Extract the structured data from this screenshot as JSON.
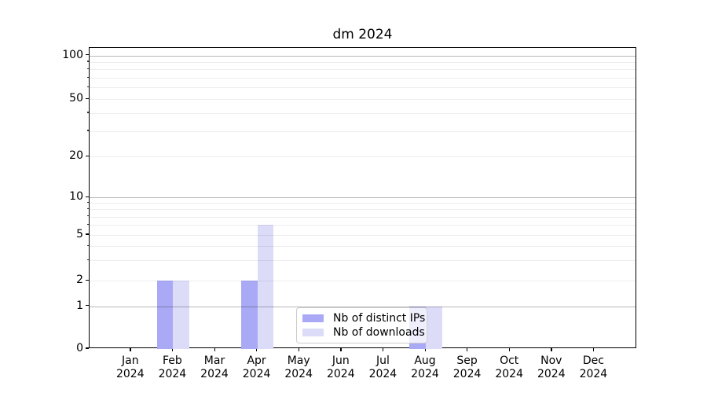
{
  "figure": {
    "title": "dm 2024"
  },
  "chart_data": {
    "type": "bar",
    "title": "dm 2024",
    "categories": [
      "Jan 2024",
      "Feb 2024",
      "Mar 2024",
      "Apr 2024",
      "May 2024",
      "Jun 2024",
      "Jul 2024",
      "Aug 2024",
      "Sep 2024",
      "Oct 2024",
      "Nov 2024",
      "Dec 2024"
    ],
    "x_tick_month": [
      "Jan",
      "Feb",
      "Mar",
      "Apr",
      "May",
      "Jun",
      "Jul",
      "Aug",
      "Sep",
      "Oct",
      "Nov",
      "Dec"
    ],
    "x_tick_year": "2024",
    "series": [
      {
        "name": "Nb of distinct IPs",
        "color": "#a9a9f6",
        "values": [
          0,
          2,
          0,
          2,
          0,
          0,
          0,
          1,
          0,
          0,
          0,
          0
        ]
      },
      {
        "name": "Nb of downloads",
        "color": "#dcdcf9",
        "values": [
          0,
          2,
          0,
          6,
          0,
          0,
          0,
          1,
          0,
          0,
          0,
          0
        ]
      }
    ],
    "y_axis": {
      "scale": "symlog",
      "tick_values": [
        0,
        1,
        2,
        5,
        10,
        20,
        50,
        100
      ],
      "tick_labels": [
        "0",
        "1",
        "2",
        "5",
        "10",
        "20",
        "50",
        "100"
      ],
      "range_top": 110
    },
    "grid": {
      "horizontal_major": [
        1,
        10,
        100
      ],
      "horizontal_minor": [
        2,
        3,
        4,
        5,
        6,
        7,
        8,
        9,
        20,
        30,
        40,
        50,
        60,
        70,
        80,
        90
      ]
    },
    "legend": {
      "position": "lower center"
    }
  }
}
